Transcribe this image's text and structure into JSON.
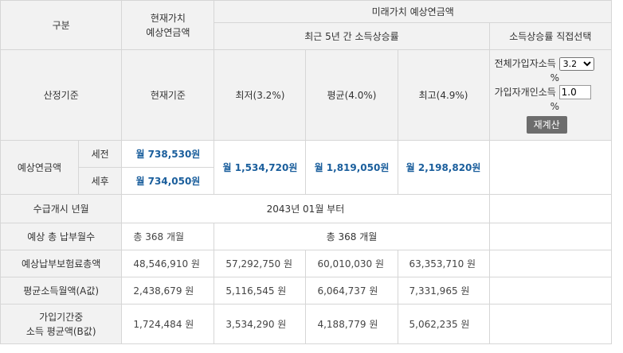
{
  "header": {
    "category": "구분",
    "present_value": "현재가치\n예상연금액",
    "future_value": "미래가치 예상연금액",
    "recent_5yr": "최근 5년 간 소득상승률",
    "direct_select": "소득상승률 직접선택"
  },
  "basis_row": {
    "label": "산정기준",
    "current": "현재기준",
    "low": "최저(3.2%)",
    "avg": "평균(4.0%)",
    "high": "최고(4.9%)"
  },
  "direct": {
    "all_subscribers_label": "전체가입자소득",
    "all_subscribers_value": "3.2",
    "all_subscribers_options": [
      "3.2"
    ],
    "pct_symbol": "%",
    "individual_label": "가입자개인소득",
    "individual_value": "1.0",
    "recalc_button": "재계산"
  },
  "expected_pension": {
    "label": "예상연금액",
    "pretax_label": "세전",
    "aftertax_label": "세후",
    "pretax_current": "월 738,530원",
    "aftertax_current": "월 734,050원",
    "low": "월 1,534,720원",
    "avg": "월 1,819,050원",
    "high": "월 2,198,820원"
  },
  "start_date": {
    "label": "수급개시 년월",
    "value": "2043년 01월 부터"
  },
  "payment_months": {
    "label": "예상 총 납부월수",
    "current": "총 368 개월",
    "future": "총 368 개월"
  },
  "total_premium": {
    "label": "예상납부보험료총액",
    "current": "48,546,910 원",
    "low": "57,292,750 원",
    "avg": "60,010,030 원",
    "high": "63,353,710 원"
  },
  "avg_income_a": {
    "label": "평균소득월액(A값)",
    "current": "2,438,679 원",
    "low": "5,116,545 원",
    "avg": "6,064,737 원",
    "high": "7,331,965 원"
  },
  "avg_income_b": {
    "label": "가입기간중\n소득 평균액(B값)",
    "current": "1,724,484 원",
    "low": "3,534,290 원",
    "avg": "4,188,779 원",
    "high": "5,062,235 원"
  }
}
